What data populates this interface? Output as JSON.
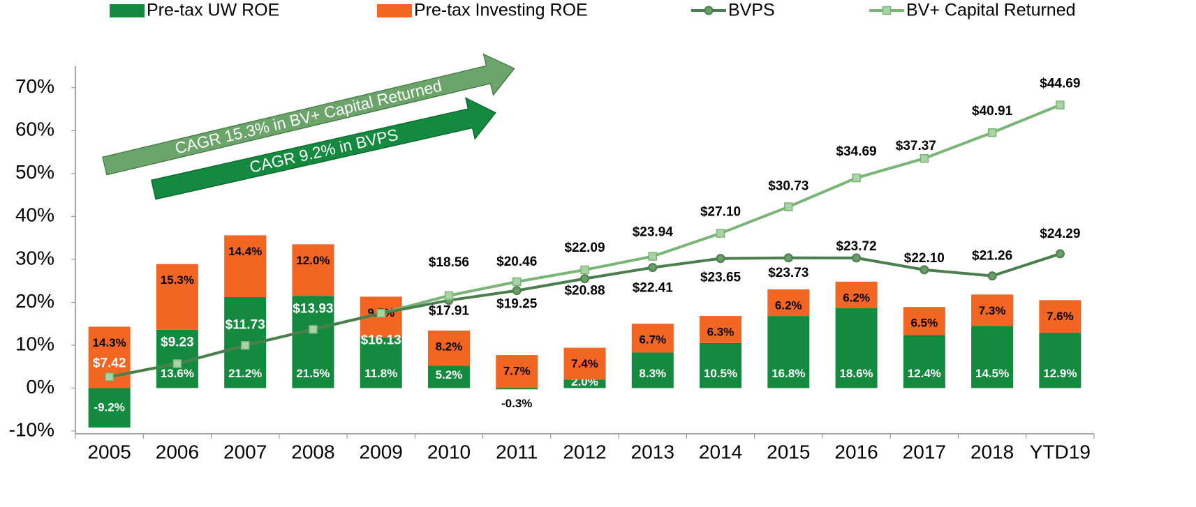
{
  "chart_data": {
    "type": "combo",
    "categories": [
      "2005",
      "2006",
      "2007",
      "2008",
      "2009",
      "2010",
      "2011",
      "2012",
      "2013",
      "2014",
      "2015",
      "2016",
      "2017",
      "2018",
      "YTD19"
    ],
    "ylim": [
      -10,
      75
    ],
    "yticks": [
      {
        "value": -10,
        "label": "-10%"
      },
      {
        "value": 0,
        "label": "0%"
      },
      {
        "value": 10,
        "label": "10%"
      },
      {
        "value": 20,
        "label": "20%"
      },
      {
        "value": 30,
        "label": "30%"
      },
      {
        "value": 40,
        "label": "40%"
      },
      {
        "value": 50,
        "label": "50%"
      },
      {
        "value": 60,
        "label": "60%"
      },
      {
        "value": 70,
        "label": "70%"
      }
    ],
    "y2lim": [
      0,
      50
    ],
    "annotations": [
      "CAGR 15.3% in BV+ Capital Returned",
      "CAGR 9.2% in BVPS"
    ],
    "series": [
      {
        "name": "Pre-tax UW ROE",
        "type": "bar",
        "color": "#138a3e",
        "values": [
          -9.2,
          13.6,
          21.2,
          21.5,
          11.8,
          5.2,
          -0.3,
          2.0,
          8.3,
          10.5,
          16.8,
          18.6,
          12.4,
          14.5,
          12.9
        ],
        "value_labels": [
          "-9.2%",
          "13.6%",
          "21.2%",
          "21.5%",
          "11.8%",
          "5.2%",
          "-0.3%",
          "2.0%",
          "8.3%",
          "10.5%",
          "16.8%",
          "18.6%",
          "12.4%",
          "14.5%",
          "12.9%"
        ]
      },
      {
        "name": "Pre-tax Investing ROE",
        "type": "bar",
        "color": "#f26522",
        "values": [
          14.3,
          15.3,
          14.4,
          12.0,
          9.5,
          8.2,
          7.7,
          7.4,
          6.7,
          6.3,
          6.2,
          6.2,
          6.5,
          7.3,
          7.6
        ],
        "value_labels": [
          "14.3%",
          "15.3%",
          "14.4%",
          "12.0%",
          "9.5%",
          "8.2%",
          "7.7%",
          "7.4%",
          "6.7%",
          "6.3%",
          "6.2%",
          "6.2%",
          "6.5%",
          "7.3%",
          "7.6%"
        ]
      },
      {
        "name": "BVPS",
        "type": "line",
        "axis": "y2",
        "color": "#4a7f4d",
        "values": [
          7.42,
          9.23,
          11.73,
          13.93,
          16.13,
          17.91,
          19.25,
          20.88,
          22.41,
          23.65,
          23.73,
          23.72,
          22.1,
          21.26,
          24.29
        ],
        "value_labels": [
          "$7.42",
          "$9.23",
          "$11.73",
          "$13.93",
          "$16.13",
          "$17.91",
          "$19.25",
          "$20.88",
          "$22.41",
          "$23.65",
          "$23.73",
          "$23.72",
          "$22.10",
          "$21.26",
          "$24.29"
        ]
      },
      {
        "name": "BV+ Capital Returned",
        "type": "line",
        "axis": "y2",
        "color": "#7ab578",
        "values": [
          7.42,
          9.23,
          11.73,
          13.93,
          16.13,
          18.56,
          20.46,
          22.09,
          23.94,
          27.1,
          30.73,
          34.69,
          37.37,
          40.91,
          44.69
        ],
        "value_labels": [
          null,
          null,
          null,
          null,
          null,
          "$18.56",
          "$20.46",
          "$22.09",
          "$23.94",
          "$27.10",
          "$30.73",
          "$34.69",
          "$37.37",
          "$40.91",
          "$44.69"
        ]
      }
    ]
  }
}
